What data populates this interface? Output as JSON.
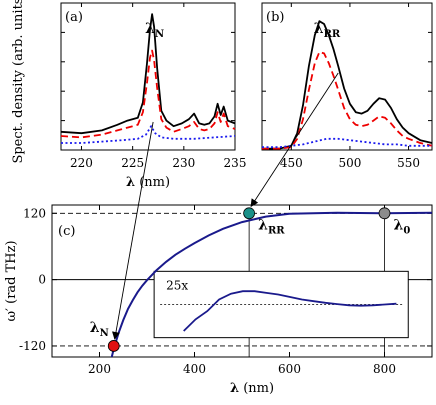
{
  "figure": {
    "shared_ylabel": "Spect. density (arb. units)"
  },
  "chart_data": [
    {
      "id": "a",
      "type": "line",
      "panel_label": "(a)",
      "annotation": {
        "main": "λ",
        "sub": "N",
        "x": 227.0
      },
      "xlabel": "λ (nm)",
      "xlim": [
        218,
        235
      ],
      "xticks": [
        220,
        225,
        230,
        235
      ],
      "ylim": [
        0,
        1.05
      ],
      "series": [
        {
          "style": "solid-black",
          "color": "#000000",
          "x": [
            218,
            220,
            222,
            223.5,
            224.5,
            225.5,
            226.0,
            226.4,
            226.7,
            226.9,
            227.1,
            227.4,
            227.8,
            228.3,
            229.0,
            229.8,
            230.5,
            231.0,
            231.5,
            232.0,
            232.5,
            233.0,
            233.3,
            233.6,
            233.9,
            234.3,
            235
          ],
          "y": [
            0.13,
            0.12,
            0.14,
            0.18,
            0.21,
            0.23,
            0.34,
            0.62,
            0.86,
            0.97,
            0.88,
            0.58,
            0.28,
            0.21,
            0.17,
            0.19,
            0.22,
            0.26,
            0.19,
            0.18,
            0.19,
            0.24,
            0.33,
            0.25,
            0.31,
            0.21,
            0.19
          ]
        },
        {
          "style": "dashed-red",
          "color": "#ee0000",
          "x": [
            218,
            220,
            222,
            223.5,
            224.5,
            225.5,
            226.0,
            226.4,
            226.7,
            226.9,
            227.1,
            227.4,
            227.8,
            228.3,
            229.0,
            229.8,
            230.5,
            231.0,
            231.5,
            232.0,
            232.5,
            233.0,
            233.3,
            233.6,
            233.9,
            234.3,
            235
          ],
          "y": [
            0.1,
            0.09,
            0.11,
            0.14,
            0.16,
            0.18,
            0.27,
            0.48,
            0.66,
            0.71,
            0.64,
            0.44,
            0.22,
            0.16,
            0.13,
            0.15,
            0.17,
            0.2,
            0.15,
            0.14,
            0.15,
            0.19,
            0.27,
            0.2,
            0.26,
            0.17,
            0.15
          ]
        },
        {
          "style": "dotted-blue",
          "color": "#1a1aee",
          "x": [
            218,
            220,
            222,
            224,
            225.5,
            226.3,
            226.8,
            227.2,
            227.8,
            229,
            231,
            233,
            235
          ],
          "y": [
            0.05,
            0.05,
            0.06,
            0.07,
            0.08,
            0.11,
            0.17,
            0.12,
            0.09,
            0.08,
            0.08,
            0.09,
            0.1
          ]
        }
      ]
    },
    {
      "id": "b",
      "type": "line",
      "panel_label": "(b)",
      "annotation": {
        "main": "λ",
        "sub": "RR",
        "x": 476.0
      },
      "xlabel": "",
      "xlim": [
        425,
        570
      ],
      "xticks": [
        450,
        500,
        550
      ],
      "ylim": [
        0,
        1.05
      ],
      "series": [
        {
          "style": "solid-black",
          "color": "#000000",
          "x": [
            425,
            440,
            450,
            455,
            460,
            465,
            470,
            474,
            478,
            482,
            486,
            490,
            495,
            500,
            505,
            510,
            515,
            520,
            525,
            530,
            535,
            540,
            545,
            550,
            560,
            570
          ],
          "y": [
            0.01,
            0.01,
            0.03,
            0.12,
            0.32,
            0.6,
            0.82,
            0.92,
            0.9,
            0.82,
            0.72,
            0.6,
            0.44,
            0.33,
            0.27,
            0.26,
            0.28,
            0.33,
            0.37,
            0.36,
            0.3,
            0.22,
            0.16,
            0.12,
            0.07,
            0.05
          ]
        },
        {
          "style": "dashed-red",
          "color": "#ee0000",
          "x": [
            425,
            440,
            450,
            455,
            460,
            465,
            470,
            474,
            478,
            482,
            486,
            490,
            495,
            500,
            505,
            510,
            515,
            520,
            525,
            530,
            535,
            540,
            545,
            550,
            560,
            570
          ],
          "y": [
            0.01,
            0.01,
            0.02,
            0.08,
            0.22,
            0.43,
            0.62,
            0.7,
            0.69,
            0.62,
            0.53,
            0.43,
            0.3,
            0.22,
            0.18,
            0.17,
            0.18,
            0.21,
            0.24,
            0.23,
            0.19,
            0.14,
            0.1,
            0.08,
            0.05,
            0.03
          ]
        },
        {
          "style": "dotted-blue",
          "color": "#1a1aee",
          "x": [
            425,
            440,
            450,
            460,
            470,
            480,
            490,
            500,
            510,
            520,
            530,
            540,
            550,
            560,
            570
          ],
          "y": [
            0.02,
            0.02,
            0.03,
            0.04,
            0.06,
            0.08,
            0.08,
            0.07,
            0.06,
            0.05,
            0.04,
            0.04,
            0.03,
            0.03,
            0.03
          ]
        }
      ]
    },
    {
      "id": "c",
      "type": "line",
      "panel_label": "(c)",
      "xlabel": "λ (nm)",
      "ylabel": "ω′ (rad THz)",
      "xlim": [
        100,
        900
      ],
      "xticks": [
        200,
        400,
        600,
        800
      ],
      "ylim": [
        -140,
        135
      ],
      "yticks": [
        120,
        0,
        -120
      ],
      "ytick_labels": [
        "120",
        "0",
        "-120"
      ],
      "series": [
        {
          "style": "solid-navy",
          "color": "#1a1a8c",
          "x": [
            220,
            230,
            240,
            250,
            260,
            270,
            280,
            290,
            300,
            320,
            340,
            360,
            380,
            400,
            430,
            460,
            500,
            550,
            600,
            700,
            800,
            900
          ],
          "y": [
            -160,
            -125,
            -97,
            -73,
            -53,
            -37,
            -23,
            -11,
            -1,
            17,
            32,
            45,
            56,
            66,
            80,
            92,
            104,
            114,
            119,
            121,
            120,
            121
          ]
        }
      ],
      "reference_lines": [
        120,
        -120
      ],
      "markers": [
        {
          "x": 230,
          "y": -120,
          "label_main": "λ",
          "label_sub": "N",
          "color": "#e01010"
        },
        {
          "x": 515,
          "y": 120,
          "label_main": "λ",
          "label_sub": "RR",
          "color": "#1a9088"
        },
        {
          "x": 800,
          "y": 120,
          "label_main": "λ",
          "label_sub": "0",
          "color": "#8c8c8c"
        }
      ],
      "inset": {
        "label": "25x",
        "xlim": [
          430,
          860
        ],
        "ylim": [
          -4,
          4
        ],
        "x": [
          480,
          500,
          520,
          540,
          560,
          580,
          600,
          620,
          640,
          660,
          680,
          700,
          720,
          740,
          760,
          780,
          800,
          820,
          840
        ],
        "y": [
          -3.2,
          -1.8,
          -0.8,
          0.6,
          1.3,
          1.6,
          1.6,
          1.4,
          1.2,
          0.9,
          0.6,
          0.4,
          0.2,
          0.05,
          -0.1,
          -0.15,
          -0.1,
          0.0,
          0.1
        ]
      }
    }
  ]
}
